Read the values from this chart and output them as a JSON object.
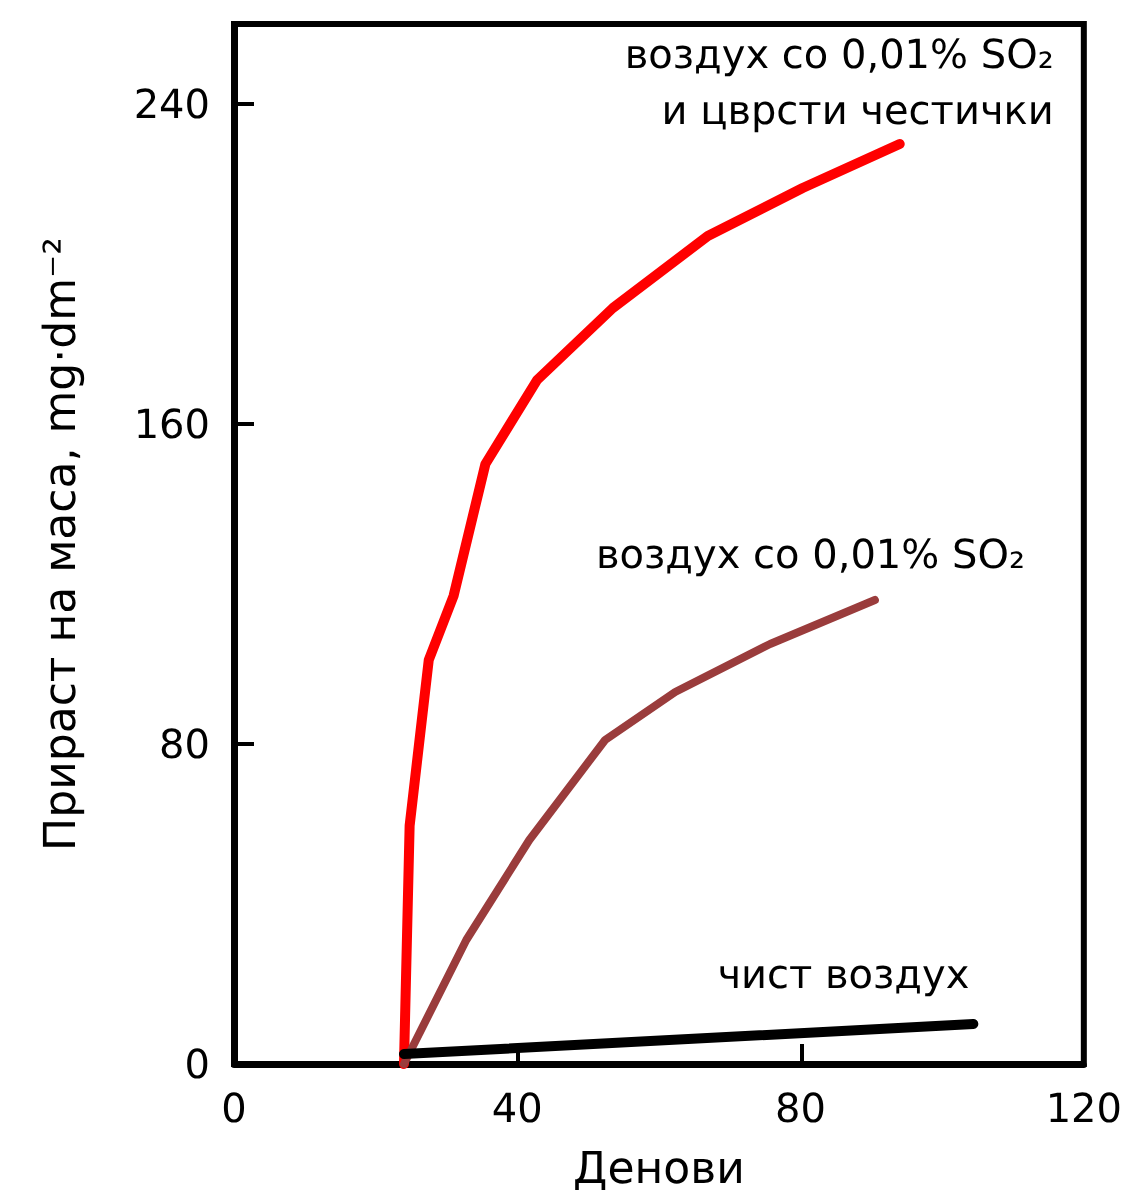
{
  "chart_data": {
    "type": "line",
    "xlabel": "Денови",
    "ylabel": "Прираст на маса, mg·dm⁻²",
    "xlim": [
      0,
      120
    ],
    "xticks": [
      0,
      40,
      80,
      120
    ],
    "ylim": [
      0,
      260
    ],
    "yticks": [
      0,
      80,
      160,
      240
    ],
    "grid": false,
    "legend": false,
    "marker": "none",
    "line_style": "solid",
    "series": [
      {
        "name": "воздух со 0,01% SO₂\nи цврсти честички",
        "color": "#ff0000",
        "x": [
          24,
          24.8,
          27.5,
          31,
          35.5,
          42.8,
          53.5,
          66.9,
          80.3,
          94
        ],
        "values": [
          0,
          59.6,
          101,
          117,
          150,
          171,
          189,
          207,
          219,
          230
        ]
      },
      {
        "name": "воздух со 0,01% SO₂",
        "color": "#9a3c3c",
        "x": [
          24,
          32.8,
          41.7,
          52.4,
          62.3,
          75.7,
          90.5
        ],
        "values": [
          0,
          31,
          56,
          81,
          93,
          105,
          116
        ]
      },
      {
        "name": "чист воздух",
        "color": "#000000",
        "x": [
          24,
          104.4
        ],
        "values": [
          2.5,
          10
        ]
      }
    ]
  }
}
